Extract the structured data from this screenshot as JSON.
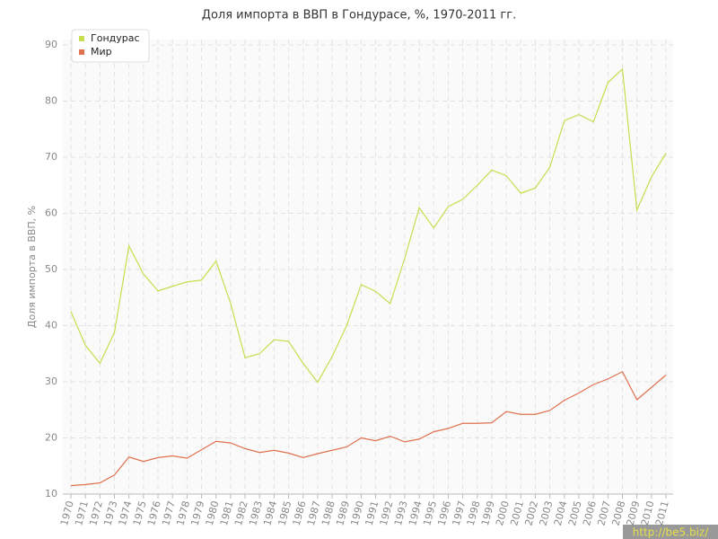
{
  "chart_data": {
    "type": "line",
    "title": "Доля импорта в ВВП в Гондурасе, %, 1970-2011 гг.",
    "y_label": "Доля импорта в ВВП, %",
    "categories": [
      "1970",
      "1971",
      "1972",
      "1973",
      "1974",
      "1975",
      "1976",
      "1977",
      "1978",
      "1979",
      "1980",
      "1981",
      "1982",
      "1983",
      "1984",
      "1985",
      "1986",
      "1987",
      "1988",
      "1989",
      "1990",
      "1991",
      "1992",
      "1993",
      "1994",
      "1995",
      "1996",
      "1997",
      "1998",
      "1999",
      "2000",
      "2001",
      "2002",
      "2003",
      "2004",
      "2005",
      "2006",
      "2007",
      "2008",
      "2009",
      "2010",
      "2011"
    ],
    "series": [
      {
        "name": "Гондурас",
        "color": "#c8dd4f",
        "values": [
          42.5,
          36.5,
          33.3,
          38.8,
          54.2,
          49.2,
          46.2,
          47.0,
          47.8,
          48.1,
          51.5,
          44.0,
          34.3,
          35.0,
          37.5,
          37.2,
          33.3,
          29.9,
          34.5,
          40.0,
          47.3,
          46.1,
          43.9,
          52.0,
          61.0,
          57.4,
          61.2,
          62.5,
          65.0,
          67.7,
          66.7,
          63.6,
          64.5,
          68.2,
          76.5,
          77.6,
          76.3,
          83.3,
          85.7,
          60.6,
          66.5,
          70.7
        ]
      },
      {
        "name": "Мир",
        "color": "#e0714f",
        "values": [
          11.5,
          11.7,
          12.0,
          13.4,
          16.6,
          15.8,
          16.5,
          16.8,
          16.4,
          17.9,
          19.4,
          19.1,
          18.1,
          17.4,
          17.8,
          17.3,
          16.5,
          17.2,
          17.8,
          18.4,
          20.0,
          19.5,
          20.3,
          19.3,
          19.8,
          21.1,
          21.7,
          22.6,
          22.6,
          22.7,
          24.7,
          24.2,
          24.2,
          24.9,
          26.7,
          28.0,
          29.5,
          30.5,
          31.8,
          26.8,
          29.0,
          31.2
        ]
      }
    ],
    "ylim": [
      10,
      90
    ],
    "yticks": [
      10,
      20,
      30,
      40,
      50,
      60,
      70,
      80,
      90
    ],
    "grid": true,
    "legend": "top-left"
  },
  "watermark": "http://be5.biz/"
}
